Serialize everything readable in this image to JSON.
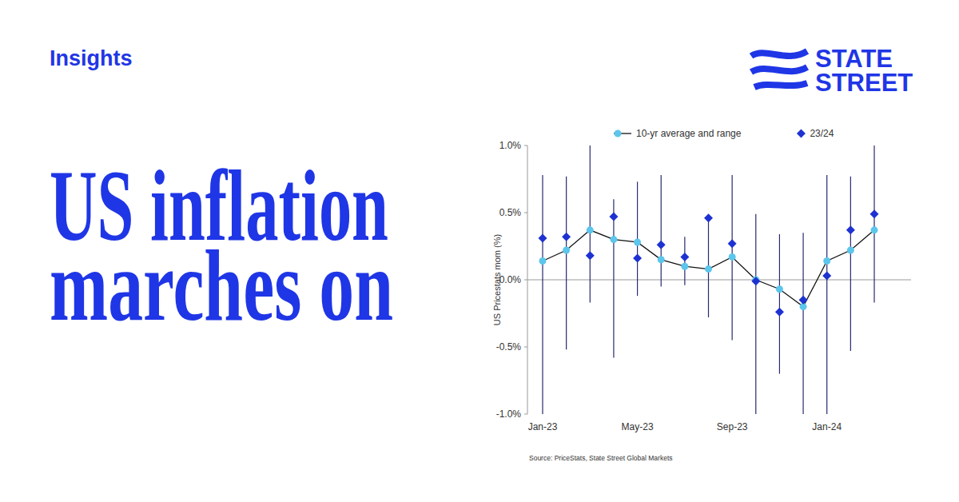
{
  "header": {
    "kicker": "Insights",
    "headline_lines": [
      "US inflation",
      "marches on"
    ],
    "brand_lines": [
      "STATE",
      "STREET"
    ]
  },
  "chart_data": {
    "type": "line",
    "ylabel": "US Pricestats mom (%)",
    "source": "Source: PriceStats, State Street Global Markets",
    "categories": [
      "Jan-23",
      null,
      null,
      null,
      "May-23",
      null,
      null,
      null,
      "Sep-23",
      null,
      null,
      null,
      "Jan-24",
      null,
      null
    ],
    "series": [
      {
        "name": "10-yr average and range",
        "type": "line",
        "marker": "circle",
        "color": "#5cc6ec",
        "values": [
          0.14,
          0.22,
          0.37,
          0.3,
          0.28,
          0.15,
          0.1,
          0.08,
          0.17,
          0,
          -0.07,
          -0.2,
          0.14,
          0.22,
          0.37
        ],
        "low": [
          -1,
          -0.52,
          -0.17,
          -0.58,
          -0.12,
          -0.05,
          -0.04,
          -0.28,
          -0.45,
          -1,
          -0.7,
          -1,
          -1,
          -0.53,
          -0.17
        ],
        "high": [
          0.78,
          0.77,
          1,
          0.6,
          0.73,
          0.78,
          0.32,
          0.46,
          0.78,
          0.49,
          0.34,
          0.35,
          0.78,
          0.77,
          1
        ]
      },
      {
        "name": "23/24",
        "type": "scatter",
        "marker": "diamond",
        "color": "#1e32d2",
        "values": [
          0.31,
          0.32,
          0.18,
          0.47,
          0.16,
          0.26,
          0.17,
          0.46,
          0.27,
          -0.01,
          -0.24,
          -0.15,
          0.03,
          0.37,
          0.49
        ]
      }
    ],
    "ylim": [
      -1,
      1
    ],
    "yticks": [
      {
        "value": -1,
        "label": "-1.0%"
      },
      {
        "value": -0.5,
        "label": "-0.5%"
      },
      {
        "value": 0,
        "label": "0.0%"
      },
      {
        "value": 0.5,
        "label": "0.5%"
      },
      {
        "value": 1,
        "label": "1.0%"
      }
    ],
    "grid": false,
    "legend": "top"
  }
}
